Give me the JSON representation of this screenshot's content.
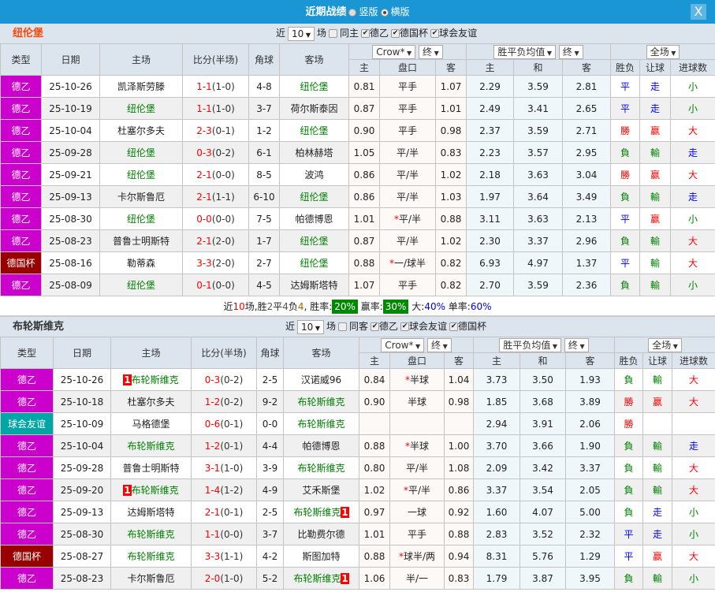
{
  "header": {
    "title": "近期战绩",
    "opt1": "竖版",
    "opt2": "横版",
    "close": "X"
  },
  "colors": {
    "德乙": "#cc00cc",
    "德国杯": "#990000",
    "球会友谊": "#00a6a6",
    "win": "#ff0000",
    "draw": "#0000ff",
    "loss": "#008000"
  },
  "labels": {
    "recent": "近",
    "matches": "场",
    "type": "类型",
    "date": "日期",
    "home": "主场",
    "score": "比分(半场)",
    "corners": "角球",
    "away": "客场",
    "h": "主",
    "hcp": "盘口",
    "a": "客",
    "d": "和",
    "wl": "胜负",
    "rq": "让球",
    "goals": "进球数",
    "crow": "Crow*",
    "final": "终",
    "avg": "胜平负均值",
    "full": "全场"
  },
  "sections": [
    {
      "team": "纽伦堡",
      "title_color": "#ff4500",
      "count": "10",
      "same_label": "同主",
      "filters": [
        "德乙",
        "德国杯",
        "球会友谊"
      ],
      "rows": [
        {
          "type": "德乙",
          "date": "25-10-26",
          "home": "凯泽斯劳滕",
          "away": "纽伦堡",
          "ft": "1-1",
          "ht": "(1-0)",
          "corners": "4-8",
          "oh": "0.81",
          "hcp": "平手",
          "star": false,
          "oa": "1.07",
          "eh": "2.29",
          "ed": "3.59",
          "ea": "2.81",
          "r": "平",
          "rq": "走",
          "ou": "小"
        },
        {
          "type": "德乙",
          "date": "25-10-19",
          "home": "纽伦堡",
          "away": "荷尔斯泰因",
          "ft": "1-1",
          "ht": "(1-0)",
          "corners": "3-7",
          "oh": "0.87",
          "hcp": "平手",
          "star": false,
          "oa": "1.01",
          "eh": "2.49",
          "ed": "3.41",
          "ea": "2.65",
          "r": "平",
          "rq": "走",
          "ou": "小"
        },
        {
          "type": "德乙",
          "date": "25-10-04",
          "home": "杜塞尔多夫",
          "away": "纽伦堡",
          "ft": "2-3",
          "ht": "(0-1)",
          "corners": "1-2",
          "oh": "0.90",
          "hcp": "平手",
          "star": false,
          "oa": "0.98",
          "eh": "2.37",
          "ed": "3.59",
          "ea": "2.71",
          "r": "勝",
          "rq": "赢",
          "ou": "大"
        },
        {
          "type": "德乙",
          "date": "25-09-28",
          "home": "纽伦堡",
          "away": "柏林赫塔",
          "ft": "0-3",
          "ht": "(0-2)",
          "corners": "6-1",
          "oh": "1.05",
          "hcp": "平/半",
          "star": false,
          "oa": "0.83",
          "eh": "2.23",
          "ed": "3.57",
          "ea": "2.95",
          "r": "負",
          "rq": "輸",
          "ou": "走"
        },
        {
          "type": "德乙",
          "date": "25-09-21",
          "home": "纽伦堡",
          "away": "波鸿",
          "ft": "2-1",
          "ht": "(0-0)",
          "corners": "8-5",
          "oh": "0.86",
          "hcp": "平/半",
          "star": false,
          "oa": "1.02",
          "eh": "2.18",
          "ed": "3.63",
          "ea": "3.04",
          "r": "勝",
          "rq": "赢",
          "ou": "大"
        },
        {
          "type": "德乙",
          "date": "25-09-13",
          "home": "卡尔斯鲁厄",
          "away": "纽伦堡",
          "ft": "2-1",
          "ht": "(1-1)",
          "corners": "6-10",
          "oh": "0.86",
          "hcp": "平/半",
          "star": false,
          "oa": "1.03",
          "eh": "1.97",
          "ed": "3.64",
          "ea": "3.49",
          "r": "負",
          "rq": "輸",
          "ou": "走"
        },
        {
          "type": "德乙",
          "date": "25-08-30",
          "home": "纽伦堡",
          "away": "帕德博恩",
          "ft": "0-0",
          "ht": "(0-0)",
          "corners": "7-5",
          "oh": "1.01",
          "hcp": "平/半",
          "star": true,
          "oa": "0.88",
          "eh": "3.11",
          "ed": "3.63",
          "ea": "2.13",
          "r": "平",
          "rq": "赢",
          "ou": "小"
        },
        {
          "type": "德乙",
          "date": "25-08-23",
          "home": "普鲁士明斯特",
          "away": "纽伦堡",
          "ft": "2-1",
          "ht": "(2-0)",
          "corners": "1-7",
          "oh": "0.87",
          "hcp": "平/半",
          "star": false,
          "oa": "1.02",
          "eh": "2.30",
          "ed": "3.37",
          "ea": "2.96",
          "r": "負",
          "rq": "輸",
          "ou": "大"
        },
        {
          "type": "德国杯",
          "date": "25-08-16",
          "home": "勒蒂森",
          "away": "纽伦堡",
          "ft": "3-3",
          "ht": "(2-0)",
          "corners": "2-7",
          "oh": "0.88",
          "hcp": "一/球半",
          "star": true,
          "oa": "0.82",
          "eh": "6.93",
          "ed": "4.97",
          "ea": "1.37",
          "r": "平",
          "rq": "輸",
          "ou": "大"
        },
        {
          "type": "德乙",
          "date": "25-08-09",
          "home": "纽伦堡",
          "away": "达姆斯塔特",
          "ft": "0-1",
          "ht": "(0-0)",
          "corners": "4-5",
          "oh": "1.07",
          "hcp": "平手",
          "star": false,
          "oa": "0.82",
          "eh": "2.70",
          "ed": "3.59",
          "ea": "2.36",
          "r": "負",
          "rq": "輸",
          "ou": "小"
        }
      ],
      "summary": {
        "p1": "近",
        "n": "10",
        "p2": "场,胜",
        "w": "2",
        "p3": "平",
        "d": "4",
        "p4": "负",
        "l": "4",
        "p5": ", 胜率:",
        "win_rate": "20%",
        "p6": " 赢率:",
        "hcp_rate": "30%",
        "p7": " 大:",
        "over": "40%",
        "p8": " 单率:",
        "odd": "60%"
      }
    },
    {
      "team": "布轮斯维克",
      "title_color": "#333333",
      "count": "10",
      "same_label": "同客",
      "filters": [
        "德乙",
        "球会友谊",
        "德国杯"
      ],
      "rows": [
        {
          "type": "德乙",
          "date": "25-10-26",
          "home": "布轮斯维克",
          "home_rank": "1",
          "away": "汉诺威96",
          "ft": "0-3",
          "ht": "(0-2)",
          "corners": "2-5",
          "oh": "0.84",
          "hcp": "半球",
          "star": true,
          "oa": "1.04",
          "eh": "3.73",
          "ed": "3.50",
          "ea": "1.93",
          "r": "負",
          "rq": "輸",
          "ou": "大"
        },
        {
          "type": "德乙",
          "date": "25-10-18",
          "home": "杜塞尔多夫",
          "away": "布轮斯维克",
          "ft": "1-2",
          "ht": "(0-2)",
          "corners": "9-2",
          "oh": "0.90",
          "hcp": "半球",
          "star": false,
          "oa": "0.98",
          "eh": "1.85",
          "ed": "3.68",
          "ea": "3.89",
          "r": "勝",
          "rq": "赢",
          "ou": "大"
        },
        {
          "type": "球会友谊",
          "date": "25-10-09",
          "home": "马格德堡",
          "away": "布轮斯维克",
          "ft": "0-6",
          "ht": "(0-1)",
          "corners": "0-0",
          "oh": "",
          "hcp": "",
          "star": false,
          "oa": "",
          "eh": "2.94",
          "ed": "3.91",
          "ea": "2.06",
          "r": "勝",
          "rq": "",
          "ou": ""
        },
        {
          "type": "德乙",
          "date": "25-10-04",
          "home": "布轮斯维克",
          "away": "帕德博恩",
          "ft": "1-2",
          "ht": "(0-1)",
          "corners": "4-4",
          "oh": "0.88",
          "hcp": "半球",
          "star": true,
          "oa": "1.00",
          "eh": "3.70",
          "ed": "3.66",
          "ea": "1.90",
          "r": "負",
          "rq": "輸",
          "ou": "走"
        },
        {
          "type": "德乙",
          "date": "25-09-28",
          "home": "普鲁士明斯特",
          "away": "布轮斯维克",
          "ft": "3-1",
          "ht": "(1-0)",
          "corners": "3-9",
          "oh": "0.80",
          "hcp": "平/半",
          "star": false,
          "oa": "1.08",
          "eh": "2.09",
          "ed": "3.42",
          "ea": "3.37",
          "r": "負",
          "rq": "輸",
          "ou": "大"
        },
        {
          "type": "德乙",
          "date": "25-09-20",
          "home": "布轮斯维克",
          "home_rank": "1",
          "away": "艾禾斯堡",
          "ft": "1-4",
          "ht": "(1-2)",
          "corners": "4-9",
          "oh": "1.02",
          "hcp": "平/半",
          "star": true,
          "oa": "0.86",
          "eh": "3.37",
          "ed": "3.54",
          "ea": "2.05",
          "r": "負",
          "rq": "輸",
          "ou": "大"
        },
        {
          "type": "德乙",
          "date": "25-09-13",
          "home": "达姆斯塔特",
          "away": "布轮斯维克",
          "away_rank": "1",
          "ft": "2-1",
          "ht": "(0-1)",
          "corners": "2-5",
          "oh": "0.97",
          "hcp": "一球",
          "star": false,
          "oa": "0.92",
          "eh": "1.60",
          "ed": "4.07",
          "ea": "5.00",
          "r": "負",
          "rq": "走",
          "ou": "小"
        },
        {
          "type": "德乙",
          "date": "25-08-30",
          "home": "布轮斯维克",
          "away": "比勒费尔德",
          "ft": "1-1",
          "ht": "(0-0)",
          "corners": "3-7",
          "oh": "1.01",
          "hcp": "平手",
          "star": false,
          "oa": "0.88",
          "eh": "2.83",
          "ed": "3.52",
          "ea": "2.32",
          "r": "平",
          "rq": "走",
          "ou": "小"
        },
        {
          "type": "德国杯",
          "date": "25-08-27",
          "home": "布轮斯维克",
          "away": "斯图加特",
          "ft": "3-3",
          "ht": "(1-1)",
          "corners": "4-2",
          "oh": "0.88",
          "hcp": "球半/两",
          "star": true,
          "oa": "0.94",
          "eh": "8.31",
          "ed": "5.76",
          "ea": "1.29",
          "r": "平",
          "rq": "赢",
          "ou": "大"
        },
        {
          "type": "德乙",
          "date": "25-08-23",
          "home": "卡尔斯鲁厄",
          "away": "布轮斯维克",
          "away_rank": "1",
          "ft": "2-0",
          "ht": "(1-0)",
          "corners": "5-2",
          "oh": "1.06",
          "hcp": "半/一",
          "star": false,
          "oa": "0.83",
          "eh": "1.79",
          "ed": "3.87",
          "ea": "3.95",
          "r": "負",
          "rq": "輸",
          "ou": "小"
        }
      ]
    }
  ]
}
